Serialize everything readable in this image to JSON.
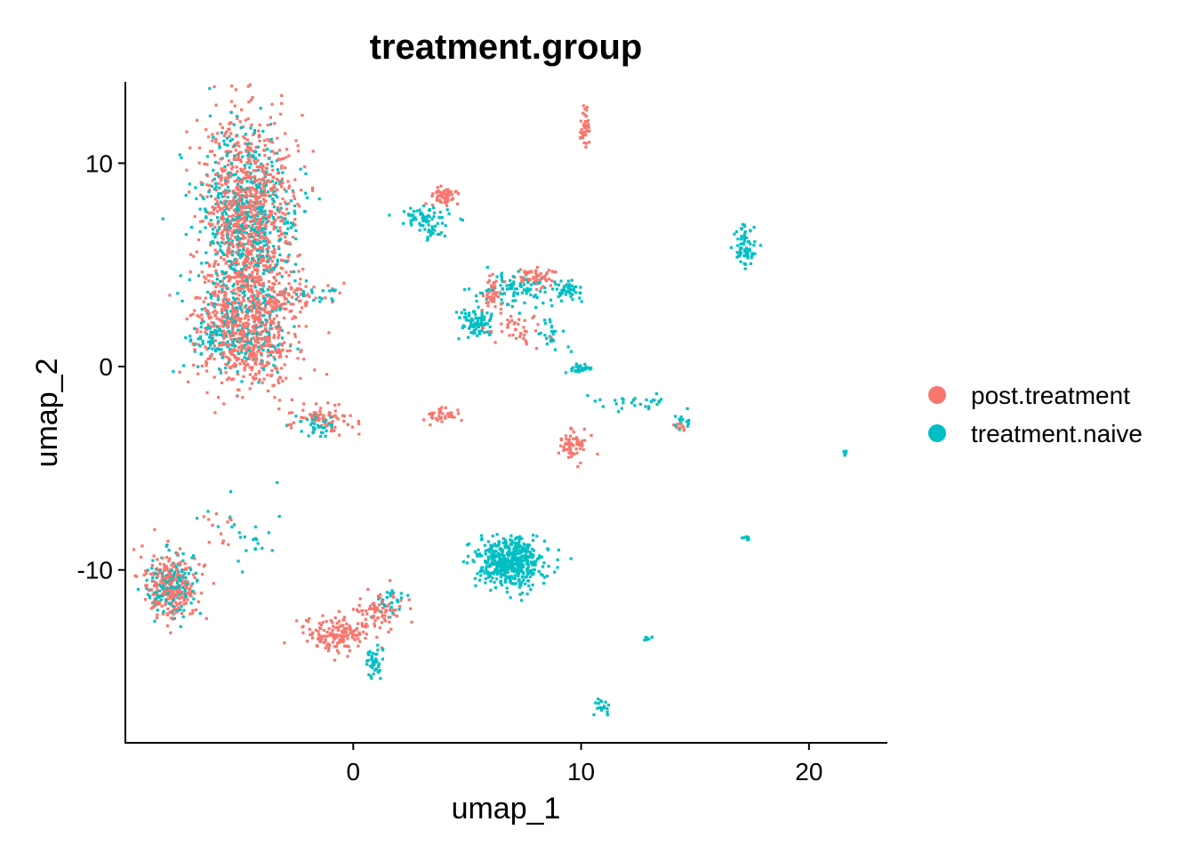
{
  "chart_data": {
    "type": "scatter",
    "title": "treatment.group",
    "xlabel": "umap_1",
    "ylabel": "umap_2",
    "xlim": [
      -10.0,
      23.4
    ],
    "ylim": [
      -18.5,
      14.0
    ],
    "x_ticks": [
      0,
      10,
      20
    ],
    "x_tick_labels": [
      "0",
      "10",
      "20"
    ],
    "y_ticks": [
      -10,
      0,
      10
    ],
    "y_tick_labels": [
      "-10",
      "0",
      "10"
    ],
    "grid": false,
    "legend_position": "right",
    "series": [
      {
        "name": "post.treatment",
        "color": "#F8766D",
        "clusters": [
          {
            "x": -4.7,
            "y": 7.5,
            "sx": 1.0,
            "sy": 2.4,
            "n": 900
          },
          {
            "x": -4.6,
            "y": 1.8,
            "sx": 1.1,
            "sy": 1.6,
            "n": 650
          },
          {
            "x": -2.6,
            "y": 3.6,
            "sx": 0.9,
            "sy": 0.3,
            "n": 60
          },
          {
            "x": -1.4,
            "y": -2.6,
            "sx": 0.7,
            "sy": 0.4,
            "n": 70
          },
          {
            "x": -8.0,
            "y": -10.8,
            "sx": 0.6,
            "sy": 0.8,
            "n": 260
          },
          {
            "x": -6.0,
            "y": -8.0,
            "sx": 0.6,
            "sy": 0.6,
            "n": 12
          },
          {
            "x": -0.6,
            "y": -13.2,
            "sx": 0.7,
            "sy": 0.4,
            "n": 160
          },
          {
            "x": 1.2,
            "y": -12.2,
            "sx": 0.6,
            "sy": 0.5,
            "n": 80
          },
          {
            "x": 4.0,
            "y": 8.4,
            "sx": 0.3,
            "sy": 0.2,
            "n": 60
          },
          {
            "x": 10.2,
            "y": 11.6,
            "sx": 0.1,
            "sy": 0.6,
            "n": 40
          },
          {
            "x": 8.0,
            "y": 4.4,
            "sx": 0.4,
            "sy": 0.2,
            "n": 60
          },
          {
            "x": 6.1,
            "y": 3.6,
            "sx": 0.2,
            "sy": 0.5,
            "n": 45
          },
          {
            "x": 7.0,
            "y": 1.8,
            "sx": 0.7,
            "sy": 0.4,
            "n": 40
          },
          {
            "x": 3.9,
            "y": -2.4,
            "sx": 0.4,
            "sy": 0.2,
            "n": 35
          },
          {
            "x": 9.7,
            "y": -3.8,
            "sx": 0.3,
            "sy": 0.4,
            "n": 60
          },
          {
            "x": 14.4,
            "y": -3.0,
            "sx": 0.2,
            "sy": 0.1,
            "n": 10
          }
        ]
      },
      {
        "name": "treatment.naive",
        "color": "#00BFC4",
        "clusters": [
          {
            "x": -4.6,
            "y": 7.2,
            "sx": 1.1,
            "sy": 2.0,
            "n": 520
          },
          {
            "x": -4.9,
            "y": 1.8,
            "sx": 1.0,
            "sy": 1.2,
            "n": 220
          },
          {
            "x": -6.5,
            "y": 1.4,
            "sx": 0.4,
            "sy": 0.4,
            "n": 30
          },
          {
            "x": -1.5,
            "y": 3.5,
            "sx": 0.8,
            "sy": 0.2,
            "n": 20
          },
          {
            "x": -1.6,
            "y": -2.9,
            "sx": 0.5,
            "sy": 0.3,
            "n": 40
          },
          {
            "x": -8.0,
            "y": -10.8,
            "sx": 0.6,
            "sy": 0.8,
            "n": 160
          },
          {
            "x": -5.0,
            "y": -8.2,
            "sx": 1.0,
            "sy": 0.8,
            "n": 25
          },
          {
            "x": 1.0,
            "y": -14.5,
            "sx": 0.2,
            "sy": 0.4,
            "n": 45
          },
          {
            "x": 1.6,
            "y": -11.5,
            "sx": 0.4,
            "sy": 0.4,
            "n": 30
          },
          {
            "x": 3.2,
            "y": 7.4,
            "sx": 0.6,
            "sy": 0.3,
            "n": 60
          },
          {
            "x": 3.6,
            "y": 6.6,
            "sx": 0.3,
            "sy": 0.2,
            "n": 20
          },
          {
            "x": 5.4,
            "y": 2.2,
            "sx": 0.4,
            "sy": 0.3,
            "n": 90
          },
          {
            "x": 7.1,
            "y": 3.7,
            "sx": 0.8,
            "sy": 0.4,
            "n": 90
          },
          {
            "x": 9.4,
            "y": 3.8,
            "sx": 0.3,
            "sy": 0.3,
            "n": 45
          },
          {
            "x": 8.5,
            "y": 1.4,
            "sx": 0.5,
            "sy": 0.4,
            "n": 25
          },
          {
            "x": 10.0,
            "y": -0.1,
            "sx": 0.3,
            "sy": 0.1,
            "n": 40
          },
          {
            "x": 12.2,
            "y": -1.8,
            "sx": 0.9,
            "sy": 0.2,
            "n": 30
          },
          {
            "x": 14.4,
            "y": -2.8,
            "sx": 0.2,
            "sy": 0.2,
            "n": 15
          },
          {
            "x": 6.9,
            "y": -9.6,
            "sx": 0.7,
            "sy": 0.6,
            "n": 520
          },
          {
            "x": 17.2,
            "y": 5.9,
            "sx": 0.2,
            "sy": 0.5,
            "n": 70
          },
          {
            "x": 21.6,
            "y": -4.3,
            "sx": 0.05,
            "sy": 0.1,
            "n": 8
          },
          {
            "x": 17.2,
            "y": -8.4,
            "sx": 0.1,
            "sy": 0.05,
            "n": 8
          },
          {
            "x": 12.9,
            "y": -13.4,
            "sx": 0.1,
            "sy": 0.05,
            "n": 6
          },
          {
            "x": 10.9,
            "y": -16.7,
            "sx": 0.2,
            "sy": 0.2,
            "n": 20
          }
        ]
      }
    ]
  }
}
